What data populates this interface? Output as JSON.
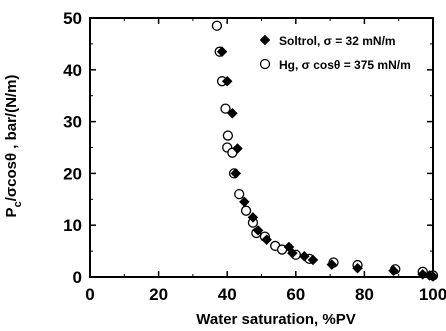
{
  "chart_data": {
    "type": "scatter",
    "xlabel": "Water saturation, %PV",
    "ylabel_main": "P",
    "ylabel_sub": "c",
    "ylabel_rest": "/σcosθ , bar/(N/m)",
    "xlim": [
      0,
      100
    ],
    "ylim": [
      0,
      50
    ],
    "x_ticks": [
      0,
      20,
      40,
      60,
      80,
      100
    ],
    "y_ticks": [
      0,
      10,
      20,
      30,
      40,
      50
    ],
    "x_tick_labels": [
      "0",
      "20",
      "40",
      "60",
      "80",
      "100"
    ],
    "y_tick_labels": [
      "0",
      "10",
      "20",
      "30",
      "40",
      "50"
    ],
    "grid": false,
    "legend_position": "top-right",
    "series": [
      {
        "name": "Soltrol, σ = 32 mN/m",
        "marker": "filled-diamond",
        "color": "#000000",
        "points": [
          [
            38.5,
            43.5
          ],
          [
            40.0,
            37.8
          ],
          [
            41.5,
            31.6
          ],
          [
            43.0,
            24.8
          ],
          [
            42.5,
            20.0
          ],
          [
            45.0,
            14.5
          ],
          [
            47.5,
            11.5
          ],
          [
            49.0,
            9.0
          ],
          [
            51.5,
            7.2
          ],
          [
            58.0,
            5.8
          ],
          [
            59.0,
            4.6
          ],
          [
            62.5,
            4.0
          ],
          [
            65.0,
            3.3
          ],
          [
            70.5,
            2.4
          ],
          [
            78.0,
            1.7
          ],
          [
            88.5,
            1.2
          ],
          [
            97.0,
            0.5
          ],
          [
            99.0,
            0.3
          ],
          [
            100.0,
            0.1
          ]
        ]
      },
      {
        "name": "Hg, σ cosθ = 375 mN/m",
        "marker": "open-circle",
        "color": "#000000",
        "points": [
          [
            37.0,
            48.5
          ],
          [
            37.8,
            43.5
          ],
          [
            38.5,
            37.8
          ],
          [
            39.5,
            32.5
          ],
          [
            40.2,
            27.3
          ],
          [
            40.0,
            25.0
          ],
          [
            41.5,
            24.0
          ],
          [
            42.0,
            20.0
          ],
          [
            43.5,
            16.0
          ],
          [
            45.5,
            12.8
          ],
          [
            47.5,
            10.5
          ],
          [
            48.5,
            8.5
          ],
          [
            51.0,
            7.8
          ],
          [
            54.0,
            6.0
          ],
          [
            56.0,
            5.3
          ],
          [
            60.0,
            4.3
          ],
          [
            64.0,
            3.5
          ],
          [
            71.0,
            2.8
          ],
          [
            78.0,
            2.3
          ],
          [
            89.0,
            1.5
          ],
          [
            97.0,
            1.0
          ],
          [
            100.0,
            0.3
          ]
        ]
      }
    ]
  }
}
